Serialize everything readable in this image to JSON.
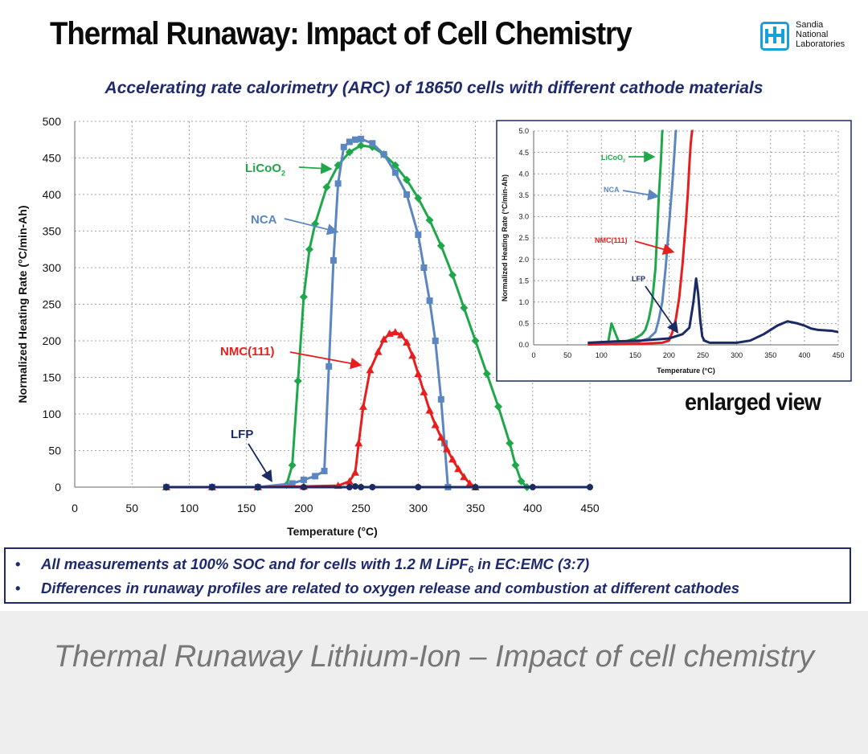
{
  "slide": {
    "title": "Thermal Runaway: Impact of Cell Chemistry",
    "subtitle": "Accelerating rate calorimetry (ARC) of 18650 cells with different cathode materials",
    "logo": {
      "line1": "Sandia",
      "line2": "National",
      "line3": "Laboratories"
    },
    "enlarged_label": "enlarged view",
    "notes": [
      {
        "bullet": "•",
        "pre": "All measurements at 100% SOC and for cells with 1.2 M LiPF",
        "sub": "6",
        "post": " in EC:EMC (3:7)"
      },
      {
        "bullet": "•",
        "text": "Differences in runaway profiles are related to oxygen release and combustion at different cathodes"
      }
    ]
  },
  "caption": "Thermal Runaway Lithium-Ion – Impact of cell chemistry",
  "colors": {
    "licoo2": "#1ea84a",
    "nca": "#5b86c0",
    "nmc": "#e81e1e",
    "lfp": "#1b2a63",
    "navy": "#1f2a6e"
  },
  "chart_data": [
    {
      "id": "main",
      "type": "scatter",
      "xlabel": "Temperature (°C)",
      "ylabel": "Normalized Heating Rate (°C/min-Ah)",
      "xlim": [
        0,
        450
      ],
      "ylim": [
        0,
        500
      ],
      "xticks": [
        0,
        50,
        100,
        150,
        200,
        250,
        300,
        350,
        400,
        450
      ],
      "yticks": [
        0,
        50,
        100,
        150,
        200,
        250,
        300,
        350,
        400,
        450,
        500
      ],
      "grid": true,
      "series": [
        {
          "name": "LiCoO2",
          "label": "LiCoO",
          "label_sub": "2",
          "marker": "diamond",
          "x": [
            80,
            120,
            160,
            185,
            190,
            195,
            200,
            205,
            210,
            220,
            230,
            240,
            250,
            260,
            270,
            280,
            290,
            300,
            310,
            320,
            330,
            340,
            350,
            360,
            370,
            380,
            385,
            390,
            395
          ],
          "y": [
            0,
            0,
            0,
            3,
            30,
            145,
            260,
            325,
            360,
            410,
            440,
            458,
            467,
            465,
            455,
            440,
            420,
            395,
            365,
            330,
            290,
            245,
            200,
            155,
            110,
            60,
            30,
            8,
            0
          ]
        },
        {
          "name": "NCA",
          "label": "NCA",
          "marker": "square",
          "x": [
            80,
            120,
            160,
            190,
            200,
            210,
            218,
            222,
            226,
            230,
            235,
            240,
            245,
            250,
            260,
            270,
            280,
            290,
            300,
            305,
            310,
            315,
            320,
            323,
            326
          ],
          "y": [
            0,
            0,
            0,
            5,
            10,
            15,
            22,
            165,
            310,
            415,
            465,
            472,
            475,
            476,
            470,
            455,
            430,
            400,
            345,
            300,
            255,
            200,
            120,
            60,
            0
          ]
        },
        {
          "name": "NMC(111)",
          "label": "NMC(111)",
          "marker": "triangle",
          "x": [
            80,
            120,
            160,
            200,
            230,
            240,
            245,
            248,
            252,
            258,
            265,
            270,
            275,
            280,
            285,
            290,
            295,
            300,
            305,
            310,
            315,
            320,
            325,
            330,
            335,
            340,
            345,
            350
          ],
          "y": [
            0,
            0,
            0,
            1,
            2,
            8,
            20,
            60,
            110,
            160,
            185,
            202,
            210,
            212,
            208,
            198,
            180,
            155,
            130,
            105,
            85,
            68,
            52,
            38,
            25,
            14,
            5,
            0
          ]
        },
        {
          "name": "LFP",
          "label": "LFP",
          "marker": "circle",
          "x": [
            80,
            120,
            160,
            200,
            240,
            245,
            250,
            260,
            300,
            350,
            400,
            450
          ],
          "y": [
            0,
            0,
            0,
            0,
            0,
            1,
            0,
            0,
            0,
            0,
            0,
            0
          ]
        }
      ]
    },
    {
      "id": "inset",
      "type": "scatter",
      "xlabel": "Temperature (°C)",
      "ylabel": "Normalized Heating Rate (°C/min-Ah)",
      "xlim": [
        0,
        450
      ],
      "ylim": [
        0,
        5
      ],
      "xticks": [
        0,
        50,
        100,
        150,
        200,
        250,
        300,
        350,
        400,
        450
      ],
      "yticks": [
        0.0,
        0.5,
        1.0,
        1.5,
        2.0,
        2.5,
        3.0,
        3.5,
        4.0,
        4.5,
        5.0
      ],
      "ytick_labels": [
        "0.0",
        "0.5",
        "1.0",
        "1.5",
        "2.0",
        "2.5",
        "3.0",
        "3.5",
        "4.0",
        "4.5",
        "5.0"
      ],
      "grid": true,
      "series": [
        {
          "name": "LiCoO2",
          "label": "LiCoO",
          "label_sub": "2",
          "x": [
            80,
            110,
            115,
            120,
            125,
            130,
            140,
            150,
            160,
            165,
            170,
            175,
            180,
            182,
            185,
            188,
            190,
            192
          ],
          "y": [
            0.02,
            0.05,
            0.5,
            0.3,
            0.1,
            0.05,
            0.1,
            0.15,
            0.25,
            0.35,
            0.6,
            1.0,
            1.8,
            2.5,
            3.5,
            4.3,
            5.0,
            5.0
          ]
        },
        {
          "name": "NCA",
          "label": "NCA",
          "x": [
            80,
            150,
            170,
            180,
            185,
            190,
            195,
            200,
            205,
            208,
            210,
            212
          ],
          "y": [
            0.01,
            0.05,
            0.15,
            0.3,
            0.6,
            1.0,
            1.8,
            2.8,
            3.8,
            4.5,
            5.0,
            5.0
          ]
        },
        {
          "name": "NMC(111)",
          "label": "NMC(111)",
          "x": [
            80,
            150,
            190,
            200,
            205,
            210,
            215,
            220,
            225,
            228,
            230,
            232,
            234,
            236
          ],
          "y": [
            0.01,
            0.02,
            0.05,
            0.1,
            0.3,
            0.6,
            1.1,
            1.9,
            2.9,
            3.6,
            4.2,
            4.7,
            5.0,
            5.0
          ]
        },
        {
          "name": "LFP",
          "label": "LFP",
          "x": [
            80,
            120,
            160,
            200,
            220,
            230,
            236,
            240,
            243,
            246,
            249,
            252,
            260,
            280,
            300,
            320,
            340,
            360,
            375,
            390,
            400,
            410,
            420,
            440,
            450
          ],
          "y": [
            0.05,
            0.08,
            0.1,
            0.15,
            0.25,
            0.4,
            1.0,
            1.55,
            1.2,
            0.6,
            0.2,
            0.1,
            0.05,
            0.05,
            0.05,
            0.1,
            0.25,
            0.45,
            0.55,
            0.5,
            0.45,
            0.38,
            0.35,
            0.33,
            0.3
          ]
        }
      ]
    }
  ]
}
